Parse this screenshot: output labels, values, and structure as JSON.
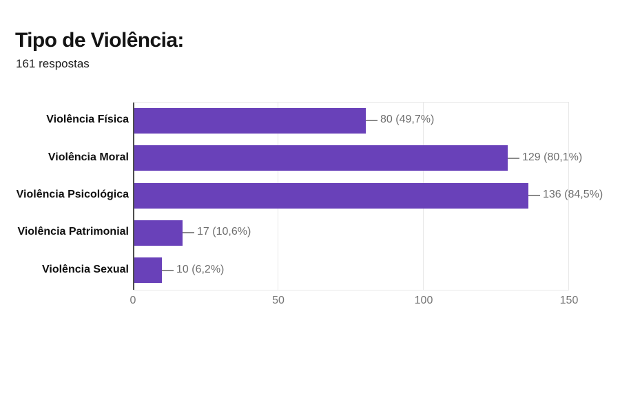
{
  "header": {
    "title": "Tipo de Violência:",
    "subtitle": "161 respostas"
  },
  "chart_data": {
    "type": "bar",
    "orientation": "horizontal",
    "title": "Tipo de Violência:",
    "subtitle": "161 respostas",
    "categories": [
      "Violência Física",
      "Violência Moral",
      "Violência Psicológica",
      "Violência Patrimonial",
      "Violência Sexual"
    ],
    "values": [
      80,
      129,
      136,
      17,
      10
    ],
    "value_labels": [
      "80 (49,7%)",
      "129 (80,1%)",
      "136 (84,5%)",
      "17 (10,6%)",
      "10 (6,2%)"
    ],
    "percentages": [
      49.7,
      80.1,
      84.5,
      10.6,
      6.2
    ],
    "xlabel": "",
    "ylabel": "",
    "xlim": [
      0,
      150
    ],
    "xticks": [
      0,
      50,
      100,
      150
    ],
    "grid": "vertical-lines-on",
    "legend": "none",
    "colors": {
      "bar": "#6941b9",
      "axis_line": "#4d4d4d",
      "gridline": "#e8e8e8",
      "value_text": "#6e6e6e",
      "tick_text": "#757575",
      "category_text": "#0f0f0f"
    }
  }
}
